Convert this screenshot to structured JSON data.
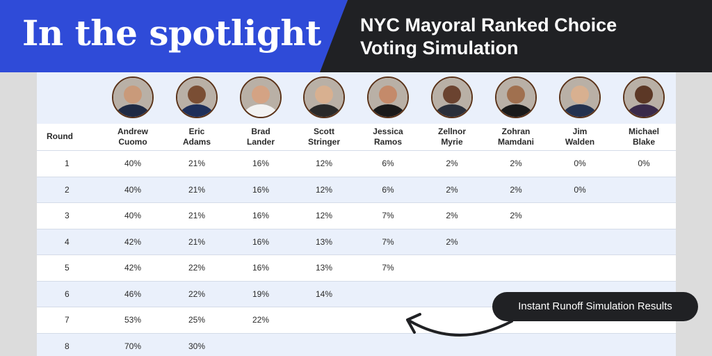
{
  "banner": {
    "kicker": "In the spotlight",
    "headline": "NYC Mayoral Ranked Choice Voting Simulation"
  },
  "table": {
    "round_header": "Round",
    "candidates": [
      {
        "first": "Andrew",
        "last": "Cuomo"
      },
      {
        "first": "Eric",
        "last": "Adams"
      },
      {
        "first": "Brad",
        "last": "Lander"
      },
      {
        "first": "Scott",
        "last": "Stringer"
      },
      {
        "first": "Jessica",
        "last": "Ramos"
      },
      {
        "first": "Zellnor",
        "last": "Myrie"
      },
      {
        "first": "Zohran",
        "last": "Mamdani"
      },
      {
        "first": "Jim",
        "last": "Walden"
      },
      {
        "first": "Michael",
        "last": "Blake"
      }
    ],
    "rows": [
      {
        "round": "1",
        "values": [
          "40%",
          "21%",
          "16%",
          "12%",
          "6%",
          "2%",
          "2%",
          "0%",
          "0%"
        ]
      },
      {
        "round": "2",
        "values": [
          "40%",
          "21%",
          "16%",
          "12%",
          "6%",
          "2%",
          "2%",
          "0%",
          ""
        ]
      },
      {
        "round": "3",
        "values": [
          "40%",
          "21%",
          "16%",
          "12%",
          "7%",
          "2%",
          "2%",
          "",
          ""
        ]
      },
      {
        "round": "4",
        "values": [
          "42%",
          "21%",
          "16%",
          "13%",
          "7%",
          "2%",
          "",
          "",
          ""
        ]
      },
      {
        "round": "5",
        "values": [
          "42%",
          "22%",
          "16%",
          "13%",
          "7%",
          "",
          "",
          "",
          ""
        ]
      },
      {
        "round": "6",
        "values": [
          "46%",
          "22%",
          "19%",
          "14%",
          "",
          "",
          "",
          "",
          ""
        ]
      },
      {
        "round": "7",
        "values": [
          "53%",
          "25%",
          "22%",
          "",
          "",
          "",
          "",
          "",
          ""
        ]
      },
      {
        "round": "8",
        "values": [
          "70%",
          "30%",
          "",
          "",
          "",
          "",
          "",
          "",
          ""
        ]
      }
    ]
  },
  "callout": {
    "label": "Instant Runoff Simulation Results"
  },
  "colors": {
    "banner_blue": "#2f4bd8",
    "banner_dark": "#202124",
    "row_alt": "#eaf0fb"
  },
  "icons": {
    "avatar": "candidate-portrait-icon",
    "arrow": "curved-arrow-icon"
  }
}
